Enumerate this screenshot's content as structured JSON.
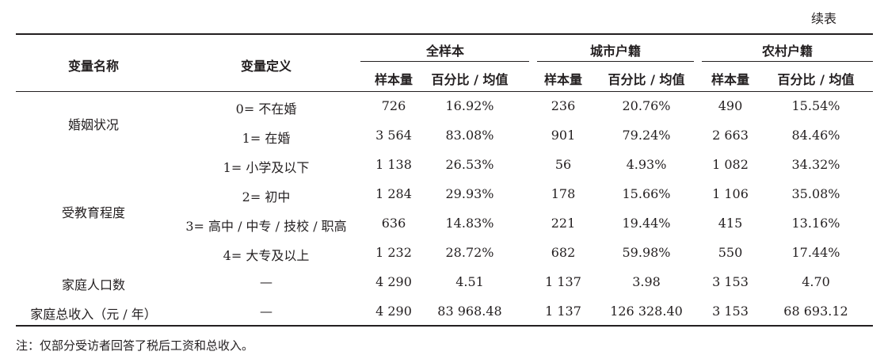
{
  "continued_label": "续表",
  "header": {
    "var_name": "变量名称",
    "var_def": "变量定义",
    "groups": [
      "全样本",
      "城市户籍",
      "农村户籍"
    ],
    "sub": [
      "样本量",
      "百分比 / 均值",
      "样本量",
      "百分比 / 均值",
      "样本量",
      "百分比 / 均值"
    ]
  },
  "rows": [
    {
      "name": "",
      "def": "0= 不在婚",
      "vals": [
        "726",
        "16.92%",
        "236",
        "20.76%",
        "490",
        "15.54%"
      ]
    },
    {
      "name": "",
      "def": "1= 在婚",
      "vals": [
        "3 564",
        "83.08%",
        "901",
        "79.24%",
        "2 663",
        "84.46%"
      ]
    },
    {
      "name": "",
      "def": "1= 小学及以下",
      "vals": [
        "1 138",
        "26.53%",
        "56",
        "4.93%",
        "1 082",
        "34.32%"
      ]
    },
    {
      "name": "",
      "def": "2= 初中",
      "vals": [
        "1 284",
        "29.93%",
        "178",
        "15.66%",
        "1 106",
        "35.08%"
      ]
    },
    {
      "name": "",
      "def": "3= 高中 / 中专 / 技校 / 职高",
      "vals": [
        "636",
        "14.83%",
        "221",
        "19.44%",
        "415",
        "13.16%"
      ]
    },
    {
      "name": "",
      "def": "4= 大专及以上",
      "vals": [
        "1 232",
        "28.72%",
        "682",
        "59.98%",
        "550",
        "17.44%"
      ]
    },
    {
      "name": "家庭人口数",
      "def": "—",
      "vals": [
        "4 290",
        "4.51",
        "1 137",
        "3.98",
        "3 153",
        "4.70"
      ]
    },
    {
      "name": "家庭总收入（元 / 年）",
      "def": "—",
      "vals": [
        "4 290",
        "83 968.48",
        "1 137",
        "126 328.40",
        "3 153",
        "68 693.12"
      ]
    }
  ],
  "group_names": [
    "婚姻状况",
    "受教育程度"
  ],
  "note": "注：仅部分受访者回答了税后工资和总收入。"
}
